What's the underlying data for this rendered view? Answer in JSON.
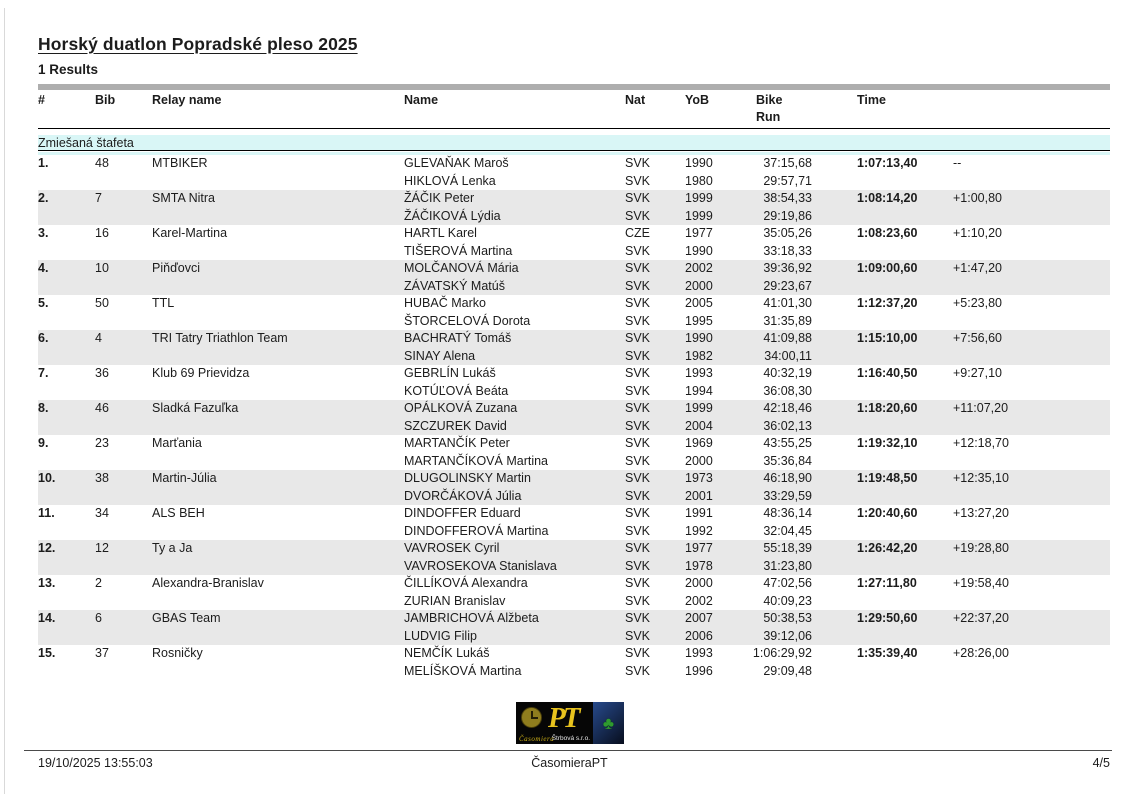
{
  "page": {
    "title": "Horský duatlon Popradské pleso 2025",
    "results_heading": "1 Results",
    "footer": {
      "datetime": "19/10/2025 13:55:03",
      "brand": "ČasomieraPT",
      "page_number": "4/5"
    },
    "logo": {
      "initials": "PT",
      "script": "Časomiera",
      "company": "Štrbová s.r.o.",
      "clover": "♣"
    },
    "colors": {
      "section_band": "#d9f6f6",
      "zebra_row": "#e8e8e8",
      "gray_bar": "#aeaeae",
      "logo_yellow": "#e8c31e",
      "clover_green": "#2f9b2f"
    }
  },
  "table": {
    "section": "Zmiešaná štafeta",
    "headers": {
      "pos": "#",
      "bib": "Bib",
      "relay": "Relay name",
      "name": "Name",
      "nat": "Nat",
      "yob": "YoB",
      "bike": "Bike",
      "run": "Run",
      "time": "Time"
    },
    "rows": [
      {
        "pos": "1.",
        "bib": "48",
        "relay": "MTBIKER",
        "time": "1:07:13,40",
        "diff": "--",
        "athletes": [
          {
            "name": "GLEVAŇAK Maroš",
            "nat": "SVK",
            "yob": "1990",
            "leg": "37:15,68"
          },
          {
            "name": "HIKLOVÁ Lenka",
            "nat": "SVK",
            "yob": "1980",
            "leg": "29:57,71"
          }
        ]
      },
      {
        "pos": "2.",
        "bib": "7",
        "relay": "SMTA Nitra",
        "time": "1:08:14,20",
        "diff": "+1:00,80",
        "athletes": [
          {
            "name": "ŽÁČIK Peter",
            "nat": "SVK",
            "yob": "1999",
            "leg": "38:54,33"
          },
          {
            "name": "ŽÁČIKOVÁ Lýdia",
            "nat": "SVK",
            "yob": "1999",
            "leg": "29:19,86"
          }
        ]
      },
      {
        "pos": "3.",
        "bib": "16",
        "relay": "Karel-Martina",
        "time": "1:08:23,60",
        "diff": "+1:10,20",
        "athletes": [
          {
            "name": "HARTL Karel",
            "nat": "CZE",
            "yob": "1977",
            "leg": "35:05,26"
          },
          {
            "name": "TIŠEROVÁ Martina",
            "nat": "SVK",
            "yob": "1990",
            "leg": "33:18,33"
          }
        ]
      },
      {
        "pos": "4.",
        "bib": "10",
        "relay": "Piňďovci",
        "time": "1:09:00,60",
        "diff": "+1:47,20",
        "athletes": [
          {
            "name": "MOLČANOVÁ Mária",
            "nat": "SVK",
            "yob": "2002",
            "leg": "39:36,92"
          },
          {
            "name": "ZÁVATSKÝ Matúš",
            "nat": "SVK",
            "yob": "2000",
            "leg": "29:23,67"
          }
        ]
      },
      {
        "pos": "5.",
        "bib": "50",
        "relay": "TTL",
        "time": "1:12:37,20",
        "diff": "+5:23,80",
        "athletes": [
          {
            "name": "HUBAČ Marko",
            "nat": "SVK",
            "yob": "2005",
            "leg": "41:01,30"
          },
          {
            "name": "ŠTORCELOVÁ Dorota",
            "nat": "SVK",
            "yob": "1995",
            "leg": "31:35,89"
          }
        ]
      },
      {
        "pos": "6.",
        "bib": "4",
        "relay": "TRI Tatry Triathlon Team",
        "time": "1:15:10,00",
        "diff": "+7:56,60",
        "athletes": [
          {
            "name": "BACHRATÝ Tomáš",
            "nat": "SVK",
            "yob": "1990",
            "leg": "41:09,88"
          },
          {
            "name": "SINAY Alena",
            "nat": "SVK",
            "yob": "1982",
            "leg": "34:00,11"
          }
        ]
      },
      {
        "pos": "7.",
        "bib": "36",
        "relay": "Klub 69 Prievidza",
        "time": "1:16:40,50",
        "diff": "+9:27,10",
        "athletes": [
          {
            "name": "GEBRLÍN Lukáš",
            "nat": "SVK",
            "yob": "1993",
            "leg": "40:32,19"
          },
          {
            "name": "KOTÚĽOVÁ Beáta",
            "nat": "SVK",
            "yob": "1994",
            "leg": "36:08,30"
          }
        ]
      },
      {
        "pos": "8.",
        "bib": "46",
        "relay": "Sladká Fazuľka",
        "time": "1:18:20,60",
        "diff": "+11:07,20",
        "athletes": [
          {
            "name": "OPÁLKOVÁ Zuzana",
            "nat": "SVK",
            "yob": "1999",
            "leg": "42:18,46"
          },
          {
            "name": "SZCZUREK David",
            "nat": "SVK",
            "yob": "2004",
            "leg": "36:02,13"
          }
        ]
      },
      {
        "pos": "9.",
        "bib": "23",
        "relay": "Marťania",
        "time": "1:19:32,10",
        "diff": "+12:18,70",
        "athletes": [
          {
            "name": "MARTANČÍK Peter",
            "nat": "SVK",
            "yob": "1969",
            "leg": "43:55,25"
          },
          {
            "name": "MARTANČÍKOVÁ Martina",
            "nat": "SVK",
            "yob": "2000",
            "leg": "35:36,84"
          }
        ]
      },
      {
        "pos": "10.",
        "bib": "38",
        "relay": "Martin-Júlia",
        "time": "1:19:48,50",
        "diff": "+12:35,10",
        "athletes": [
          {
            "name": "DLUGOLINSKY Martin",
            "nat": "SVK",
            "yob": "1973",
            "leg": "46:18,90"
          },
          {
            "name": "DVORČÁKOVÁ Júlia",
            "nat": "SVK",
            "yob": "2001",
            "leg": "33:29,59"
          }
        ]
      },
      {
        "pos": "11.",
        "bib": "34",
        "relay": "ALS BEH",
        "time": "1:20:40,60",
        "diff": "+13:27,20",
        "athletes": [
          {
            "name": "DINDOFFER Eduard",
            "nat": "SVK",
            "yob": "1991",
            "leg": "48:36,14"
          },
          {
            "name": "DINDOFFEROVÁ Martina",
            "nat": "SVK",
            "yob": "1992",
            "leg": "32:04,45"
          }
        ]
      },
      {
        "pos": "12.",
        "bib": "12",
        "relay": "Ty a Ja",
        "time": "1:26:42,20",
        "diff": "+19:28,80",
        "athletes": [
          {
            "name": "VAVROSEK Cyril",
            "nat": "SVK",
            "yob": "1977",
            "leg": "55:18,39"
          },
          {
            "name": "VAVROSEKOVA Stanislava",
            "nat": "SVK",
            "yob": "1978",
            "leg": "31:23,80"
          }
        ]
      },
      {
        "pos": "13.",
        "bib": "2",
        "relay": "Alexandra-Branislav",
        "time": "1:27:11,80",
        "diff": "+19:58,40",
        "athletes": [
          {
            "name": "ČILLÍKOVÁ Alexandra",
            "nat": "SVK",
            "yob": "2000",
            "leg": "47:02,56"
          },
          {
            "name": "ZURIAN Branislav",
            "nat": "SVK",
            "yob": "2002",
            "leg": "40:09,23"
          }
        ]
      },
      {
        "pos": "14.",
        "bib": "6",
        "relay": "GBAS Team",
        "time": "1:29:50,60",
        "diff": "+22:37,20",
        "athletes": [
          {
            "name": "JAMBRICHOVÁ Alžbeta",
            "nat": "SVK",
            "yob": "2007",
            "leg": "50:38,53"
          },
          {
            "name": "LUDVIG Filip",
            "nat": "SVK",
            "yob": "2006",
            "leg": "39:12,06"
          }
        ]
      },
      {
        "pos": "15.",
        "bib": "37",
        "relay": "Rosničky",
        "time": "1:35:39,40",
        "diff": "+28:26,00",
        "athletes": [
          {
            "name": "NEMČÍK Lukáš",
            "nat": "SVK",
            "yob": "1993",
            "leg": "1:06:29,92"
          },
          {
            "name": "MELÍŠKOVÁ Martina",
            "nat": "SVK",
            "yob": "1996",
            "leg": "29:09,48"
          }
        ]
      }
    ]
  }
}
